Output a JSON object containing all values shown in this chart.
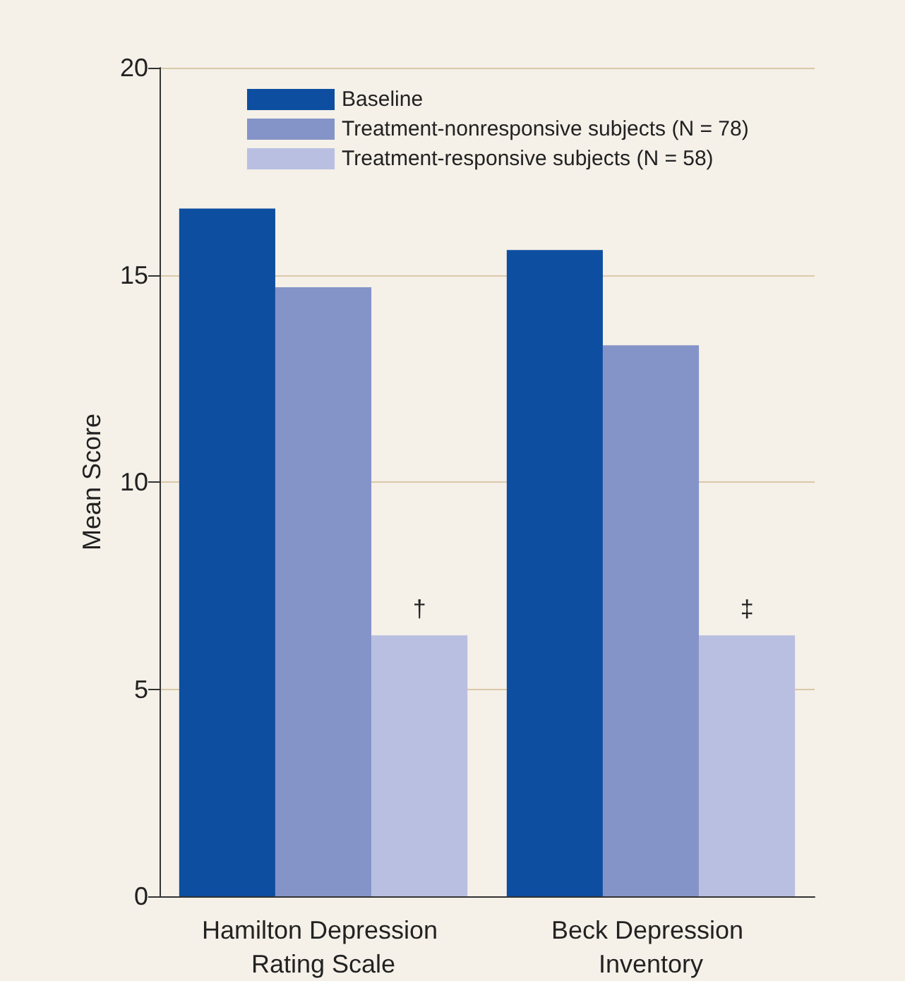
{
  "chart_data": {
    "type": "bar",
    "ylabel": "Mean Score",
    "categories": [
      "Hamilton Depression Rating Scale",
      "Beck Depression Inventory"
    ],
    "series": [
      {
        "name": "Baseline",
        "color": "#0d4ea0",
        "values": [
          16.6,
          15.6
        ]
      },
      {
        "name": "Treatment-nonresponsive subjects (N = 78)",
        "color": "#8594c8",
        "values": [
          14.7,
          13.3
        ]
      },
      {
        "name": "Treatment-responsive subjects (N = 58)",
        "color": "#b9bfe0",
        "values": [
          6.3,
          6.3
        ]
      }
    ],
    "ylim": [
      0,
      20
    ],
    "yticks": [
      0,
      5,
      10,
      15,
      20
    ],
    "grid": "y",
    "legend": "top left",
    "annotations": [
      "†",
      "‡"
    ]
  }
}
